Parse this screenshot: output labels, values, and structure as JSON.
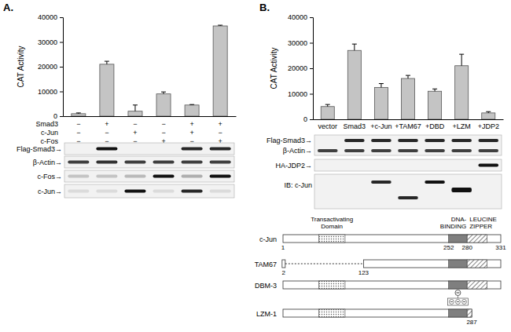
{
  "chart_data": [
    {
      "type": "bar",
      "panel_label": "A.",
      "y_label": "CAT Activity",
      "categories": [
        null,
        null,
        null,
        null,
        null,
        null
      ],
      "values": [
        1000,
        21000,
        2000,
        9000,
        4500,
        36500
      ],
      "errors": [
        300,
        1200,
        2500,
        800,
        200,
        300
      ],
      "color": "#c4c4c4",
      "ylim": [
        0,
        40000
      ],
      "yticks": [
        0,
        10000,
        20000,
        30000,
        40000
      ],
      "conditions": [
        {
          "name": "Smad3",
          "signs": [
            "−",
            "+",
            "−",
            "−",
            "+",
            "+"
          ]
        },
        {
          "name": "c-Jun",
          "signs": [
            "−",
            "−",
            "+",
            "−",
            "+",
            "−"
          ]
        },
        {
          "name": "c-Fos",
          "signs": [
            "−",
            "−",
            "−",
            "+",
            "−",
            "+"
          ]
        }
      ],
      "blots": [
        "Flag-Smad3→",
        "β-Actin→",
        "c-Fos→",
        "c-Jun→"
      ]
    },
    {
      "type": "bar",
      "panel_label": "B.",
      "y_label": "CAT Activity",
      "categories": [
        "vector",
        "Smad3",
        "+c-Jun",
        "+TAM67",
        "+DBD",
        "+LZM",
        "+JDP2"
      ],
      "values": [
        5000,
        27000,
        12500,
        16000,
        11000,
        21000,
        2500
      ],
      "errors": [
        800,
        2500,
        1500,
        1200,
        900,
        4500,
        500
      ],
      "color": "#c4c4c4",
      "ylim": [
        0,
        40000
      ],
      "yticks": [
        0,
        10000,
        20000,
        30000,
        40000
      ],
      "blots": [
        "Flag-Smad3→",
        "β-Actin→",
        "HA-JDP2→",
        "IB: c-Jun"
      ]
    }
  ],
  "diagram": {
    "domain_labels": [
      [
        "Transactivating",
        "Domain"
      ],
      [
        "DNA-",
        "BINDING"
      ],
      [
        "LEUCINE",
        "ZIPPER"
      ]
    ],
    "dna_binding": [
      252,
      280
    ],
    "constructs": [
      {
        "name": "c-Jun",
        "start": 1,
        "end": 331,
        "numbers": [
          1,
          252,
          280,
          331
        ]
      },
      {
        "name": "TAM67",
        "start": 2,
        "gap_end": 123,
        "end": 331,
        "numbers": [
          2,
          123
        ]
      },
      {
        "name": "DBM-3",
        "start": 1,
        "end": 331,
        "numbers": []
      },
      {
        "name": "LZM-1",
        "start": 1,
        "end": 287,
        "numbers": [
          287
        ]
      }
    ]
  }
}
